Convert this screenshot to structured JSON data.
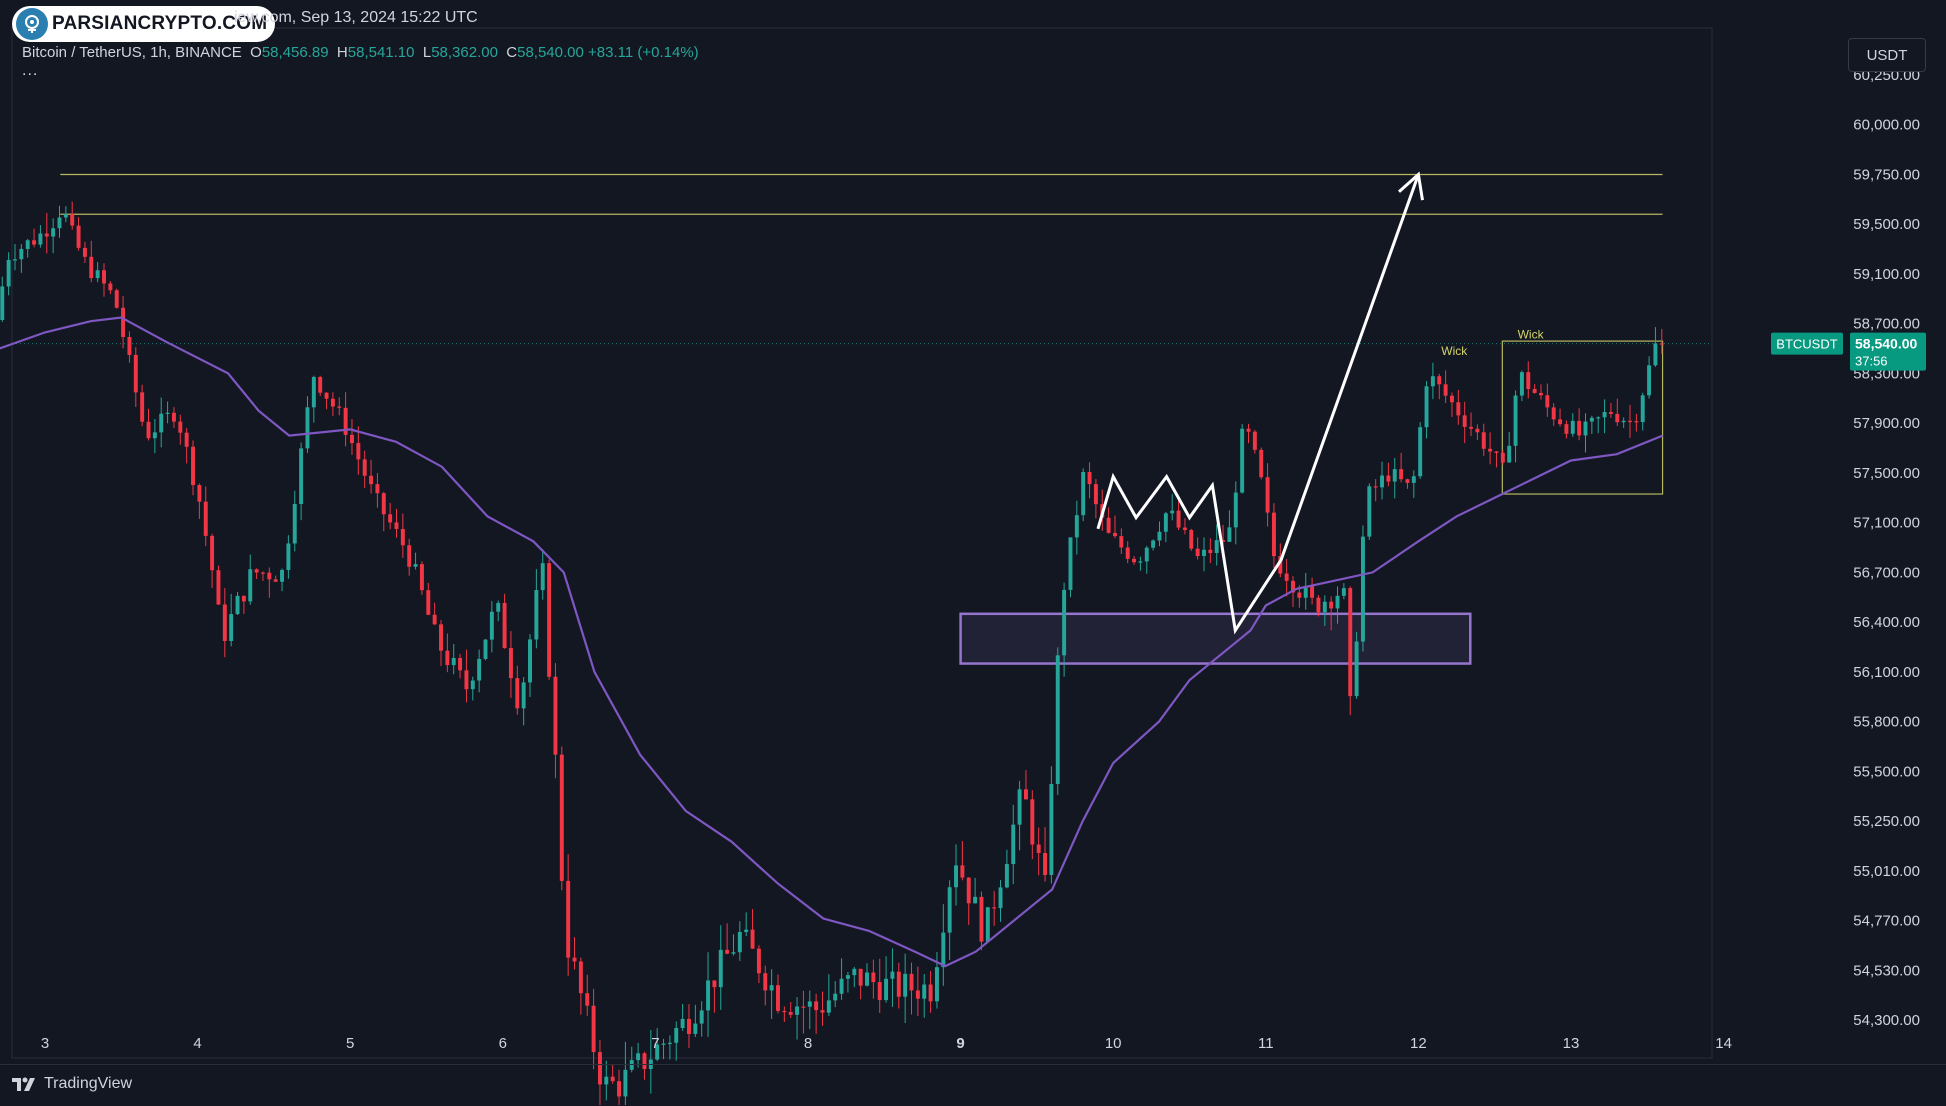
{
  "logo": {
    "text": "PARSIANCRYPTO.COM",
    "icon": "brain-circuit-icon"
  },
  "header": {
    "date_line": "iew.com, Sep 13, 2024 15:22 UTC"
  },
  "symbol": {
    "title": "Bitcoin / TetherUS, 1h, BINANCE",
    "open_label": "O",
    "open": "58,456.89",
    "high_label": "H",
    "high": "58,541.10",
    "low_label": "L",
    "low": "58,362.00",
    "close_label": "C",
    "close": "58,540.00",
    "change": "+83.11 (+0.14%)",
    "more": "..."
  },
  "currency_button": "USDT",
  "price_tag": {
    "symbol": "BTCUSDT",
    "price": "58,540.00",
    "countdown": "37:56"
  },
  "footer": {
    "brand": "TradingView"
  },
  "colors": {
    "background": "#131722",
    "up": "#26a69a",
    "down": "#f23645",
    "ma": "#7e57c2",
    "zone": "#9575cd",
    "level": "#d4d46a",
    "arrow": "#ffffff",
    "text": "#d1d4dc"
  },
  "chart_data": {
    "type": "candlestick",
    "y_axis": {
      "ticks": [
        60250,
        60000,
        59750,
        59500,
        59100,
        58700,
        58300,
        57900,
        57500,
        57100,
        56700,
        56400,
        56100,
        55800,
        55500,
        55250,
        55010,
        54770,
        54530,
        54300
      ],
      "tick_labels": [
        "60,250.00",
        "60,000.00",
        "59,750.00",
        "59,500.00",
        "59,100.00",
        "58,700.00",
        "58,300.00",
        "57,900.00",
        "57,500.00",
        "57,100.00",
        "56,700.00",
        "56,400.00",
        "56,100.00",
        "55,800.00",
        "55,500.00",
        "55,250.00",
        "55,010.00",
        "54,770.00",
        "54,530.00",
        "54,300.00"
      ]
    },
    "x_axis": {
      "ticks": [
        3,
        4,
        5,
        6,
        7,
        8,
        9,
        10,
        11,
        12,
        13,
        14
      ],
      "tick_labels": [
        "3",
        "4",
        "5",
        "6",
        "7",
        "8",
        "9",
        "10",
        "11",
        "12",
        "13",
        "14"
      ],
      "unit": "day of month (Sep 2024)"
    },
    "anchors": [
      [
        2.7,
        58600
      ],
      [
        2.8,
        59250
      ],
      [
        3.0,
        59400
      ],
      [
        3.15,
        59600
      ],
      [
        3.3,
        59200
      ],
      [
        3.5,
        58900
      ],
      [
        3.7,
        57800
      ],
      [
        3.9,
        58000
      ],
      [
        4.05,
        57300
      ],
      [
        4.2,
        56300
      ],
      [
        4.4,
        56700
      ],
      [
        4.6,
        56700
      ],
      [
        4.8,
        58300
      ],
      [
        5.0,
        57900
      ],
      [
        5.2,
        57300
      ],
      [
        5.4,
        56900
      ],
      [
        5.6,
        56300
      ],
      [
        5.8,
        56000
      ],
      [
        6.0,
        56500
      ],
      [
        6.15,
        55900
      ],
      [
        6.3,
        56750
      ],
      [
        6.45,
        54700
      ],
      [
        6.7,
        54000
      ],
      [
        6.8,
        54000
      ],
      [
        7.25,
        54300
      ],
      [
        7.6,
        54700
      ],
      [
        7.85,
        54400
      ],
      [
        8.1,
        54350
      ],
      [
        8.35,
        54500
      ],
      [
        8.6,
        54450
      ],
      [
        8.85,
        54450
      ],
      [
        9.0,
        55100
      ],
      [
        9.2,
        54700
      ],
      [
        9.45,
        55400
      ],
      [
        9.6,
        54900
      ],
      [
        9.7,
        56500
      ],
      [
        9.85,
        57500
      ],
      [
        10.0,
        57000
      ],
      [
        10.2,
        56800
      ],
      [
        10.4,
        57200
      ],
      [
        10.6,
        56800
      ],
      [
        10.8,
        57000
      ],
      [
        10.9,
        57900
      ],
      [
        11.0,
        57500
      ],
      [
        11.1,
        56800
      ],
      [
        11.35,
        56500
      ],
      [
        11.55,
        56600
      ],
      [
        11.6,
        55800
      ],
      [
        11.7,
        57300
      ],
      [
        11.85,
        57500
      ],
      [
        12.0,
        57350
      ],
      [
        12.1,
        58300
      ],
      [
        12.3,
        58000
      ],
      [
        12.5,
        57700
      ],
      [
        12.6,
        57500
      ],
      [
        12.7,
        58300
      ],
      [
        12.9,
        58000
      ],
      [
        13.1,
        57800
      ],
      [
        13.3,
        58000
      ],
      [
        13.45,
        57900
      ],
      [
        13.6,
        58540
      ]
    ],
    "moving_average": [
      [
        2.7,
        58500
      ],
      [
        3.0,
        58630
      ],
      [
        3.3,
        58720
      ],
      [
        3.5,
        58750
      ],
      [
        3.8,
        58550
      ],
      [
        4.2,
        58300
      ],
      [
        4.4,
        58000
      ],
      [
        4.6,
        57800
      ],
      [
        5.0,
        57850
      ],
      [
        5.3,
        57750
      ],
      [
        5.6,
        57550
      ],
      [
        5.9,
        57150
      ],
      [
        6.2,
        56950
      ],
      [
        6.4,
        56700
      ],
      [
        6.6,
        56100
      ],
      [
        6.9,
        55600
      ],
      [
        7.2,
        55300
      ],
      [
        7.5,
        55150
      ],
      [
        7.8,
        54950
      ],
      [
        8.1,
        54780
      ],
      [
        8.4,
        54720
      ],
      [
        8.7,
        54620
      ],
      [
        8.9,
        54550
      ],
      [
        9.1,
        54620
      ],
      [
        9.4,
        54800
      ],
      [
        9.6,
        54920
      ],
      [
        9.8,
        55250
      ],
      [
        10.0,
        55550
      ],
      [
        10.3,
        55800
      ],
      [
        10.5,
        56050
      ],
      [
        10.7,
        56200
      ],
      [
        10.9,
        56350
      ],
      [
        11.0,
        56500
      ],
      [
        11.2,
        56600
      ],
      [
        11.45,
        56650
      ],
      [
        11.7,
        56700
      ],
      [
        12.0,
        56950
      ],
      [
        12.25,
        57150
      ],
      [
        12.5,
        57300
      ],
      [
        12.75,
        57450
      ],
      [
        13.0,
        57600
      ],
      [
        13.3,
        57650
      ],
      [
        13.6,
        57800
      ]
    ],
    "horizontal_levels": [
      {
        "from": 3.1,
        "to": 13.6,
        "price": 59750
      },
      {
        "from": 3.1,
        "to": 13.6,
        "price": 59550
      }
    ],
    "support_zone": {
      "from": 9.0,
      "to": 12.34,
      "top": 56450,
      "bottom": 56150
    },
    "range_box": {
      "from": 12.55,
      "to": 13.6,
      "top": 58560,
      "bottom": 57330
    },
    "annotations": [
      {
        "text": "Wick",
        "x": 12.15,
        "price": 58450
      },
      {
        "text": "Wick",
        "x": 12.65,
        "price": 58580
      }
    ],
    "projection_path": [
      [
        9.9,
        57050
      ],
      [
        10.0,
        57470
      ],
      [
        10.15,
        57140
      ],
      [
        10.35,
        57470
      ],
      [
        10.5,
        57140
      ],
      [
        10.65,
        57400
      ],
      [
        10.8,
        56350
      ],
      [
        11.1,
        56800
      ],
      [
        12.0,
        59750
      ]
    ],
    "last_price": 58540
  }
}
